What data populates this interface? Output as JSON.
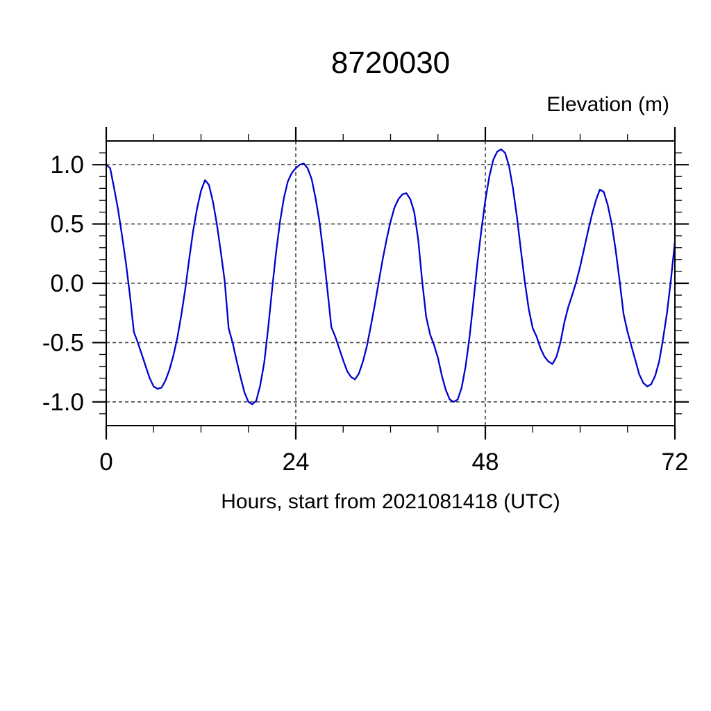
{
  "chart_data": {
    "type": "line",
    "title": "8720030",
    "ylabel": "Elevation (m)",
    "xlabel": "Hours, start from 2021081418 (UTC)",
    "xlim": [
      0,
      72
    ],
    "ylim": [
      -1.2,
      1.2
    ],
    "xticks": [
      0,
      24,
      48,
      72
    ],
    "xtick_labels": [
      "0",
      "24",
      "48",
      "72"
    ],
    "yticks": [
      -1.0,
      -0.5,
      0.0,
      0.5,
      1.0
    ],
    "ytick_labels": [
      "-1.0",
      "-0.5",
      "0.0",
      "0.5",
      "1.0"
    ],
    "x_minor_tick_step": 6,
    "y_minor_tick_step": 0.1,
    "grid_x": [
      24,
      48
    ],
    "grid_y": [
      -1.0,
      -0.5,
      0.0,
      0.5,
      1.0
    ],
    "grid_style": "dashed",
    "legend": "none",
    "colors": {
      "line": "#0000d0",
      "axis": "#000000",
      "grid": "#444444",
      "text": "#000000",
      "background": "#ffffff"
    },
    "series": [
      {
        "name": "elevation",
        "t_start": 0,
        "t_step": 0.5,
        "values": [
          1.0,
          0.97,
          0.8,
          0.62,
          0.4,
          0.17,
          -0.1,
          -0.41,
          -0.5,
          -0.6,
          -0.7,
          -0.8,
          -0.87,
          -0.89,
          -0.88,
          -0.82,
          -0.73,
          -0.61,
          -0.46,
          -0.27,
          -0.05,
          0.2,
          0.44,
          0.63,
          0.78,
          0.87,
          0.83,
          0.69,
          0.5,
          0.27,
          0.02,
          -0.38,
          -0.5,
          -0.65,
          -0.79,
          -0.92,
          -1.0,
          -1.02,
          -0.99,
          -0.86,
          -0.67,
          -0.38,
          -0.05,
          0.26,
          0.52,
          0.72,
          0.86,
          0.93,
          0.97,
          1.0,
          1.01,
          0.97,
          0.88,
          0.72,
          0.52,
          0.25,
          -0.05,
          -0.37,
          -0.45,
          -0.55,
          -0.65,
          -0.74,
          -0.79,
          -0.81,
          -0.76,
          -0.66,
          -0.53,
          -0.36,
          -0.18,
          0.01,
          0.2,
          0.37,
          0.52,
          0.64,
          0.71,
          0.75,
          0.76,
          0.71,
          0.6,
          0.37,
          0.02,
          -0.28,
          -0.43,
          -0.52,
          -0.63,
          -0.78,
          -0.9,
          -0.98,
          -1.0,
          -0.98,
          -0.88,
          -0.7,
          -0.45,
          -0.15,
          0.17,
          0.45,
          0.7,
          0.9,
          1.04,
          1.11,
          1.13,
          1.1,
          0.99,
          0.8,
          0.56,
          0.28,
          0.01,
          -0.22,
          -0.38,
          -0.45,
          -0.55,
          -0.62,
          -0.66,
          -0.68,
          -0.62,
          -0.5,
          -0.33,
          -0.2,
          -0.1,
          0.01,
          0.14,
          0.29,
          0.44,
          0.58,
          0.7,
          0.79,
          0.77,
          0.66,
          0.5,
          0.28,
          0.02,
          -0.26,
          -0.41,
          -0.53,
          -0.65,
          -0.77,
          -0.84,
          -0.87,
          -0.85,
          -0.78,
          -0.66,
          -0.47,
          -0.25,
          0.03,
          0.35
        ]
      }
    ]
  }
}
